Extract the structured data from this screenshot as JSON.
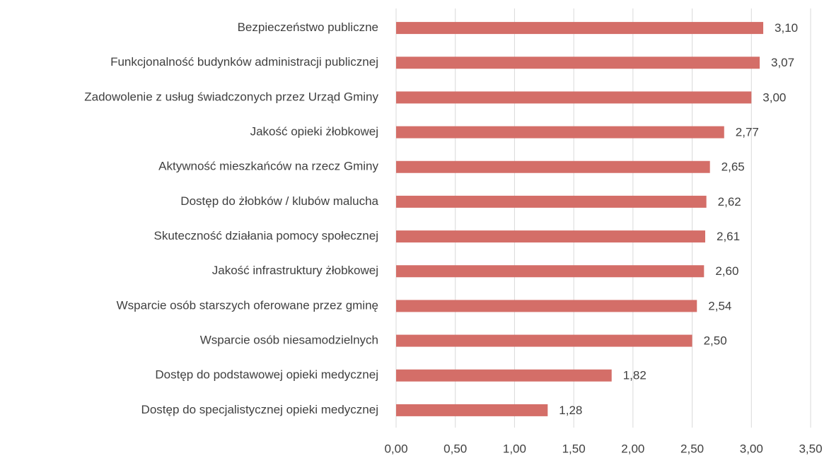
{
  "chart_data": {
    "type": "bar",
    "orientation": "horizontal",
    "categories": [
      "Bezpieczeństwo publiczne",
      "Funkcjonalność budynków administracji publicznej",
      "Zadowolenie z usług świadczonych przez Urząd Gminy",
      "Jakość opieki żłobkowej",
      "Aktywność mieszkańców na rzecz Gminy",
      "Dostęp do żłobków / klubów malucha",
      "Skuteczność działania pomocy społecznej",
      "Jakość infrastruktury żłobkowej",
      "Wsparcie osób starszych oferowane przez gminę",
      "Wsparcie osób niesamodzielnych",
      "Dostęp do podstawowej opieki medycznej",
      "Dostęp do specjalistycznej opieki medycznej"
    ],
    "values": [
      3.1,
      3.07,
      3.0,
      2.77,
      2.65,
      2.62,
      2.61,
      2.6,
      2.54,
      2.5,
      1.82,
      1.28
    ],
    "value_labels": [
      "3,10",
      "3,07",
      "3,00",
      "2,77",
      "2,65",
      "2,62",
      "2,61",
      "2,60",
      "2,54",
      "2,50",
      "1,82",
      "1,28"
    ],
    "color": "#d46e68",
    "xlim": [
      0,
      3.5
    ],
    "xticks": [
      {
        "value": 0,
        "label": "0,00"
      },
      {
        "value": 0.5,
        "label": "0,50"
      },
      {
        "value": 1,
        "label": "1,00"
      },
      {
        "value": 1.5,
        "label": "1,50"
      },
      {
        "value": 2,
        "label": "2,00"
      },
      {
        "value": 2.5,
        "label": "2,50"
      },
      {
        "value": 3,
        "label": "3,00"
      },
      {
        "value": 3.5,
        "label": "3,50"
      }
    ],
    "grid": true
  }
}
